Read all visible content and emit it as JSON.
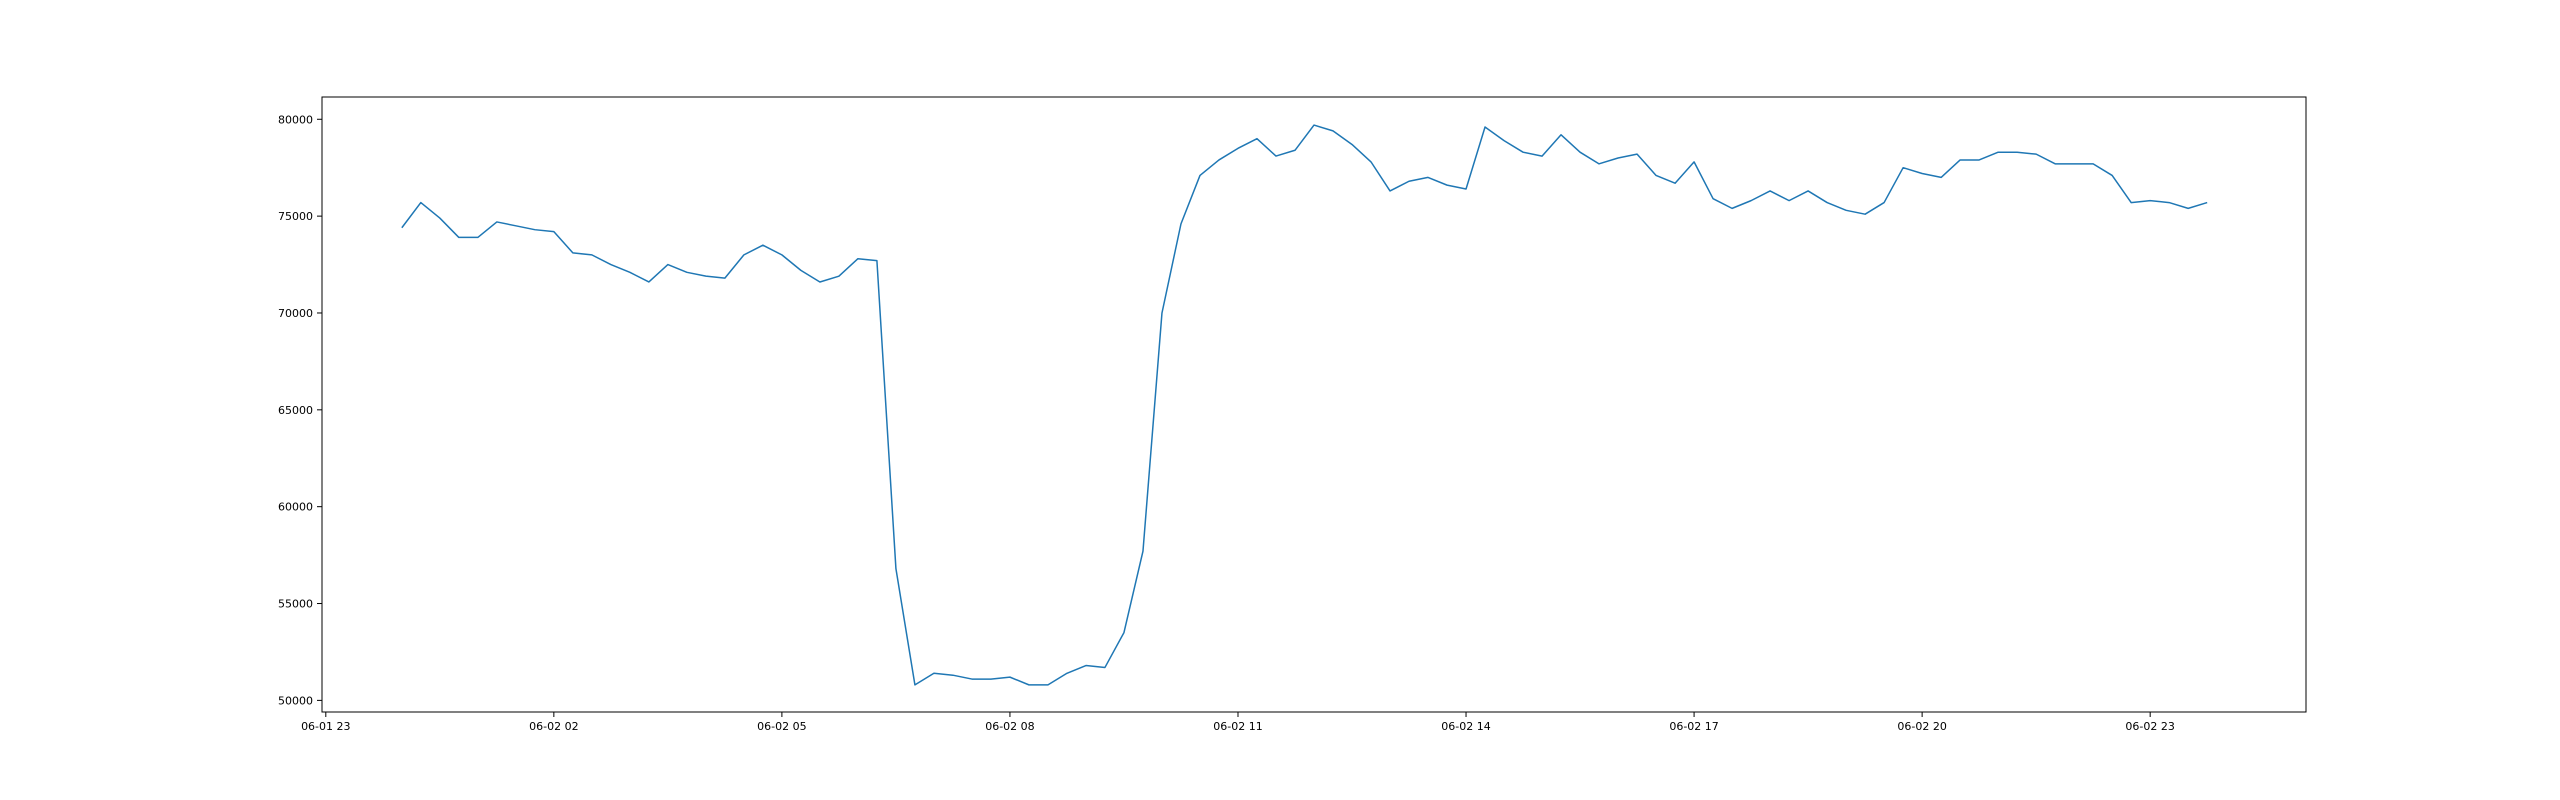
{
  "chart_data": {
    "type": "line",
    "title": "",
    "xlabel": "",
    "ylabel": "",
    "grid": false,
    "line_color": "#1f77b4",
    "x_axis": {
      "type": "datetime",
      "range": [
        "2024-06-01 22:57",
        "2024-06-03 01:03"
      ],
      "ticks": [
        {
          "t": "2024-06-01 23:00",
          "label": "06-01 23"
        },
        {
          "t": "2024-06-02 02:00",
          "label": "06-02 02"
        },
        {
          "t": "2024-06-02 05:00",
          "label": "06-02 05"
        },
        {
          "t": "2024-06-02 08:00",
          "label": "06-02 08"
        },
        {
          "t": "2024-06-02 11:00",
          "label": "06-02 11"
        },
        {
          "t": "2024-06-02 14:00",
          "label": "06-02 14"
        },
        {
          "t": "2024-06-02 17:00",
          "label": "06-02 17"
        },
        {
          "t": "2024-06-02 20:00",
          "label": "06-02 20"
        },
        {
          "t": "2024-06-02 23:00",
          "label": "06-02 23"
        }
      ]
    },
    "y_axis": {
      "range": [
        49400,
        81150
      ],
      "ticks": [
        {
          "v": 50000,
          "label": "50000"
        },
        {
          "v": 55000,
          "label": "55000"
        },
        {
          "v": 60000,
          "label": "60000"
        },
        {
          "v": 65000,
          "label": "65000"
        },
        {
          "v": 70000,
          "label": "70000"
        },
        {
          "v": 75000,
          "label": "75000"
        },
        {
          "v": 80000,
          "label": "80000"
        }
      ]
    },
    "x": [
      "2024-06-02 00:00",
      "2024-06-02 00:15",
      "2024-06-02 00:30",
      "2024-06-02 00:45",
      "2024-06-02 01:00",
      "2024-06-02 01:15",
      "2024-06-02 01:30",
      "2024-06-02 01:45",
      "2024-06-02 02:00",
      "2024-06-02 02:15",
      "2024-06-02 02:30",
      "2024-06-02 02:45",
      "2024-06-02 03:00",
      "2024-06-02 03:15",
      "2024-06-02 03:30",
      "2024-06-02 03:45",
      "2024-06-02 04:00",
      "2024-06-02 04:15",
      "2024-06-02 04:30",
      "2024-06-02 04:45",
      "2024-06-02 05:00",
      "2024-06-02 05:15",
      "2024-06-02 05:30",
      "2024-06-02 05:45",
      "2024-06-02 06:00",
      "2024-06-02 06:15",
      "2024-06-02 06:30",
      "2024-06-02 06:45",
      "2024-06-02 07:00",
      "2024-06-02 07:15",
      "2024-06-02 07:30",
      "2024-06-02 07:45",
      "2024-06-02 08:00",
      "2024-06-02 08:15",
      "2024-06-02 08:30",
      "2024-06-02 08:45",
      "2024-06-02 09:00",
      "2024-06-02 09:15",
      "2024-06-02 09:30",
      "2024-06-02 09:45",
      "2024-06-02 10:00",
      "2024-06-02 10:15",
      "2024-06-02 10:30",
      "2024-06-02 10:45",
      "2024-06-02 11:00",
      "2024-06-02 11:15",
      "2024-06-02 11:30",
      "2024-06-02 11:45",
      "2024-06-02 12:00",
      "2024-06-02 12:15",
      "2024-06-02 12:30",
      "2024-06-02 12:45",
      "2024-06-02 13:00",
      "2024-06-02 13:15",
      "2024-06-02 13:30",
      "2024-06-02 13:45",
      "2024-06-02 14:00",
      "2024-06-02 14:15",
      "2024-06-02 14:30",
      "2024-06-02 14:45",
      "2024-06-02 15:00",
      "2024-06-02 15:15",
      "2024-06-02 15:30",
      "2024-06-02 15:45",
      "2024-06-02 16:00",
      "2024-06-02 16:15",
      "2024-06-02 16:30",
      "2024-06-02 16:45",
      "2024-06-02 17:00",
      "2024-06-02 17:15",
      "2024-06-02 17:30",
      "2024-06-02 17:45",
      "2024-06-02 18:00",
      "2024-06-02 18:15",
      "2024-06-02 18:30",
      "2024-06-02 18:45",
      "2024-06-02 19:00",
      "2024-06-02 19:15",
      "2024-06-02 19:30",
      "2024-06-02 19:45",
      "2024-06-02 20:00",
      "2024-06-02 20:15",
      "2024-06-02 20:30",
      "2024-06-02 20:45",
      "2024-06-02 21:00",
      "2024-06-02 21:15",
      "2024-06-02 21:30",
      "2024-06-02 21:45",
      "2024-06-02 22:00",
      "2024-06-02 22:15",
      "2024-06-02 22:30",
      "2024-06-02 22:45",
      "2024-06-02 23:00",
      "2024-06-02 23:15",
      "2024-06-02 23:30",
      "2024-06-02 23:45"
    ],
    "values": [
      74400,
      75700,
      74900,
      73900,
      73900,
      74700,
      74500,
      74300,
      74200,
      73100,
      73000,
      72500,
      72100,
      71600,
      72500,
      72100,
      71900,
      71800,
      73000,
      73500,
      73000,
      72200,
      71600,
      71900,
      72800,
      72700,
      56800,
      50800,
      51400,
      51300,
      51100,
      51100,
      51200,
      50800,
      50800,
      51400,
      51800,
      51700,
      53500,
      57700,
      70000,
      74600,
      77100,
      77900,
      78500,
      79000,
      78100,
      78400,
      79700,
      79400,
      78700,
      77800,
      76300,
      76800,
      77000,
      76600,
      76400,
      79600,
      78900,
      78300,
      78100,
      79200,
      78300,
      77700,
      78000,
      78200,
      77100,
      76700,
      77800,
      75900,
      75400,
      75800,
      76300,
      75800,
      76300,
      75700,
      75300,
      75100,
      75700,
      77500,
      77200,
      77000,
      77900,
      77900,
      78300,
      78300,
      78200,
      77700,
      77700,
      77700,
      77100,
      75700,
      75800,
      75700,
      75400,
      75700
    ]
  }
}
